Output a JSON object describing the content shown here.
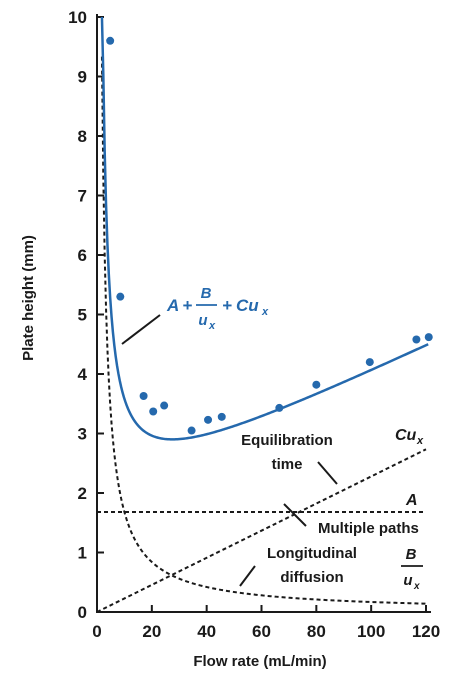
{
  "chart_data": {
    "type": "line",
    "xlabel": "Flow rate (mL/min)",
    "ylabel": "Plate height (mm)",
    "xlim": [
      0,
      120
    ],
    "ylim": [
      0,
      10
    ],
    "x_ticks": [
      "0",
      "20",
      "40",
      "60",
      "80",
      "100",
      "120"
    ],
    "y_ticks": [
      "0",
      "1",
      "2",
      "3",
      "4",
      "5",
      "6",
      "7",
      "8",
      "9",
      "10"
    ],
    "grid": false,
    "colors": {
      "fit": "#2569ad",
      "points": "#2569ad",
      "terms": "#1a1a1a"
    },
    "model": {
      "A": 1.68,
      "B": 16.8,
      "C": 0.0222
    },
    "points": [
      {
        "x": 4.8,
        "y": 9.6
      },
      {
        "x": 8.5,
        "y": 5.3
      },
      {
        "x": 17.0,
        "y": 3.63
      },
      {
        "x": 20.5,
        "y": 3.37
      },
      {
        "x": 24.5,
        "y": 3.47
      },
      {
        "x": 34.5,
        "y": 3.05
      },
      {
        "x": 40.5,
        "y": 3.23
      },
      {
        "x": 45.5,
        "y": 3.28
      },
      {
        "x": 66.5,
        "y": 3.43
      },
      {
        "x": 80.0,
        "y": 3.82
      },
      {
        "x": 99.5,
        "y": 4.2
      },
      {
        "x": 116.5,
        "y": 4.58
      },
      {
        "x": 121.0,
        "y": 4.62
      }
    ],
    "series": [
      {
        "role": "fit",
        "equation": {
          "A": "A",
          "plus": "+",
          "B": "B",
          "u": "u",
          "sub": "x",
          "Cu": "Cu"
        }
      },
      {
        "role": "C-term",
        "label": "Cu",
        "sub": "x",
        "annotation": [
          "Equilibration",
          "time"
        ]
      },
      {
        "role": "A-term",
        "label": "A",
        "annotation": [
          "Multiple paths"
        ]
      },
      {
        "role": "B-term",
        "label_num": "B",
        "label_den": "u",
        "sub": "x",
        "annotation": [
          "Longitudinal",
          "diffusion"
        ]
      }
    ]
  }
}
